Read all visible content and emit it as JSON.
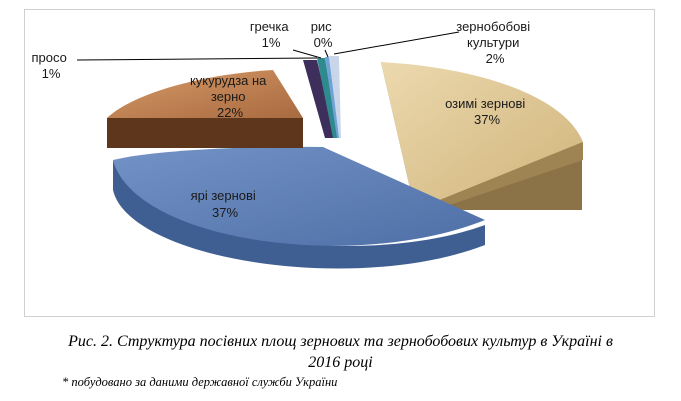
{
  "chart_data": {
    "type": "pie",
    "title": "",
    "slices": [
      {
        "label": "озимі зернові",
        "value": 37,
        "value_label": "37%",
        "color": "#d9c08c"
      },
      {
        "label": "ярі зернові",
        "value": 37,
        "value_label": "37%",
        "color": "#5d7fb8"
      },
      {
        "label": "кукурудза на зерно",
        "value": 22,
        "value_label": "22%",
        "color": "#b97a4e"
      },
      {
        "label": "просо",
        "value": 1,
        "value_label": "1%",
        "color": "#3d2e5c"
      },
      {
        "label": "гречка",
        "value": 1,
        "value_label": "1%",
        "color": "#2f8a8f"
      },
      {
        "label": "рис",
        "value": 0,
        "value_label": "0%",
        "color": "#6fa3d6"
      },
      {
        "label": "зернобобові культури",
        "value": 2,
        "value_label": "2%",
        "color": "#c9d6ea"
      }
    ],
    "legend": "none"
  },
  "caption": {
    "line1": "Рис. 2. Структура посівних площ зернових та зернобобових культур в Україні в",
    "line2": "2016 році",
    "note": "* побудовано за даними державної служби України"
  },
  "labels": {
    "ozymi": [
      "озимі зернові",
      "37%"
    ],
    "yari": [
      "ярі зернові",
      "37%"
    ],
    "kukurudza": [
      "кукурудза на",
      "зерно",
      "22%"
    ],
    "proso": [
      "просо",
      "1%"
    ],
    "hrechka": [
      "гречка",
      "1%"
    ],
    "rys": [
      "рис",
      "0%"
    ],
    "zernobob": [
      "зернобобові",
      "культури",
      "2%"
    ]
  }
}
